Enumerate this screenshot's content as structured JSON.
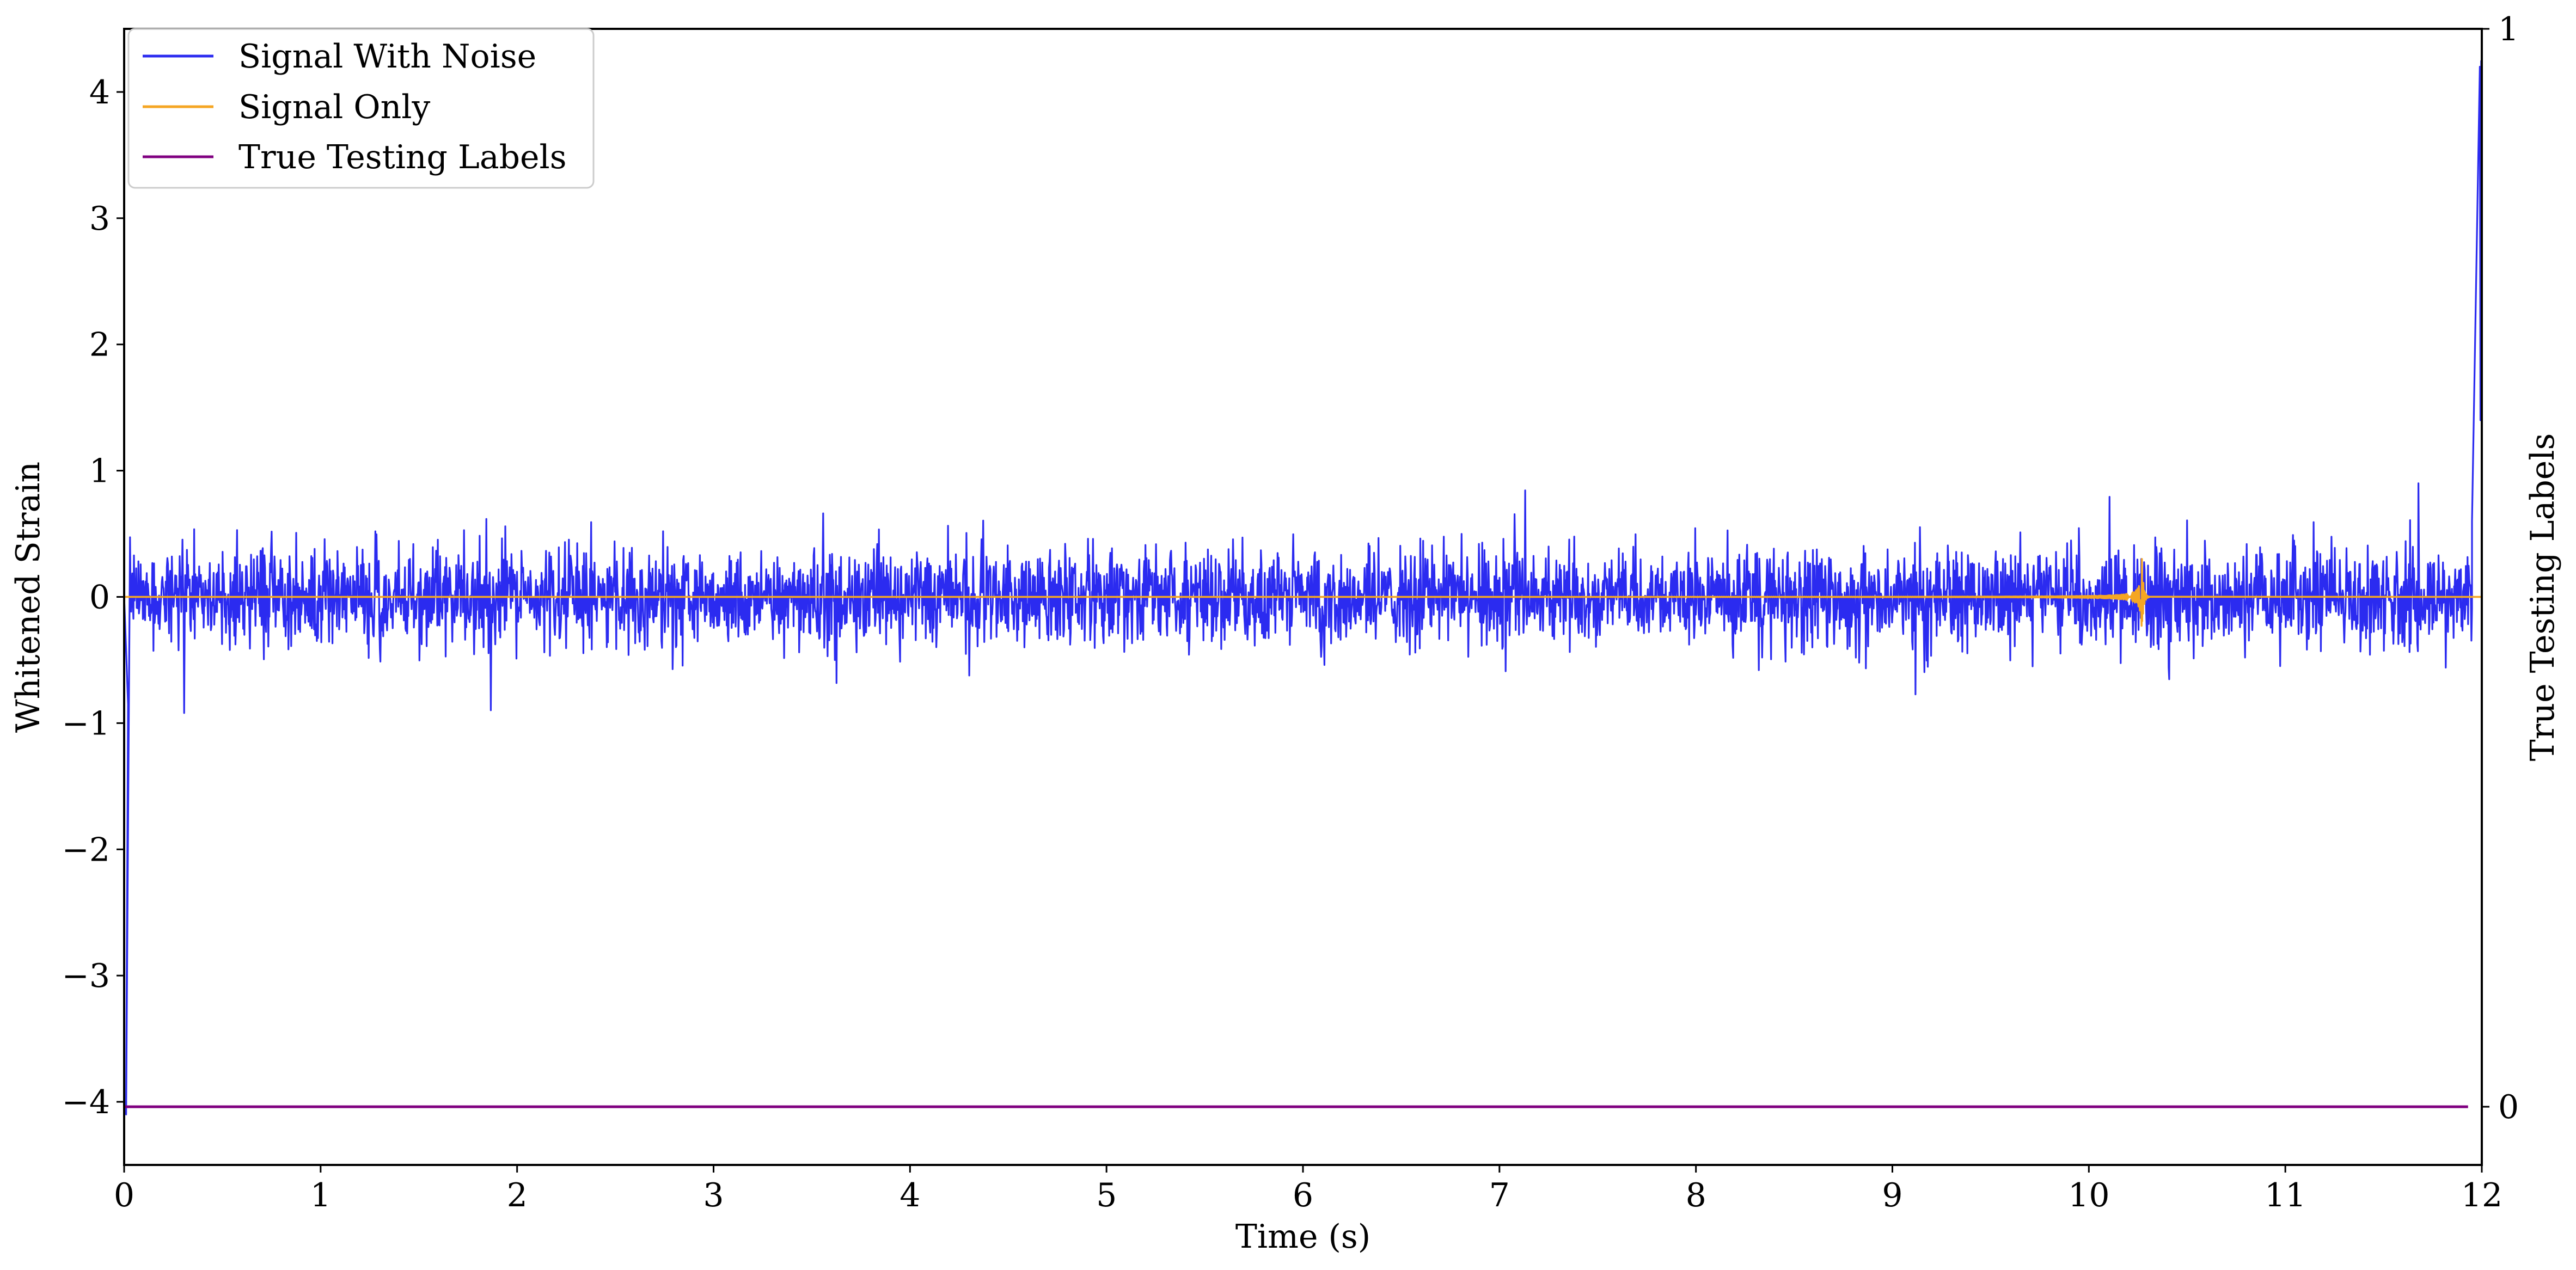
{
  "chart_data": {
    "type": "line",
    "title": "",
    "xlabel": "Time (s)",
    "ylabel": "Whitened Strain",
    "y2label": "True Testing Labels",
    "xlim": [
      0,
      12
    ],
    "ylim": [
      -4.5,
      4.5
    ],
    "y2lim": [
      -0.054,
      1.0
    ],
    "xticks": [
      "0",
      "1",
      "2",
      "3",
      "4",
      "5",
      "6",
      "7",
      "8",
      "9",
      "10",
      "11",
      "12"
    ],
    "yticks": [
      "−4",
      "−3",
      "−2",
      "−1",
      "0",
      "1",
      "2",
      "3",
      "4"
    ],
    "y2ticks": [
      "0",
      "1"
    ],
    "grid": false,
    "legend_position": "top-left",
    "series": [
      {
        "name": "Signal With Noise",
        "color": "#2b2bf0",
        "axis": "left",
        "noise_amplitude_typical": 0.3,
        "noise_peak_max": 0.9,
        "noise_peak_min": -0.92,
        "points": [
          [
            0,
            0
          ],
          [
            0.02,
            -0.85
          ],
          [
            0.01,
            -4.1
          ],
          [
            11.95,
            0.6
          ],
          [
            11.99,
            4.2
          ],
          [
            11.993,
            1.4
          ],
          [
            11.997,
            4.25
          ]
        ]
      },
      {
        "name": "Signal Only",
        "color": "#f5a623",
        "axis": "left",
        "chirp_visible_from": 7.8,
        "merger_time": 10.27,
        "peak_amplitude": 0.3
      },
      {
        "name": "True Testing Labels",
        "color": "#800080",
        "axis": "right",
        "points": [
          [
            0,
            0
          ],
          [
            11.93,
            0
          ]
        ]
      }
    ]
  }
}
